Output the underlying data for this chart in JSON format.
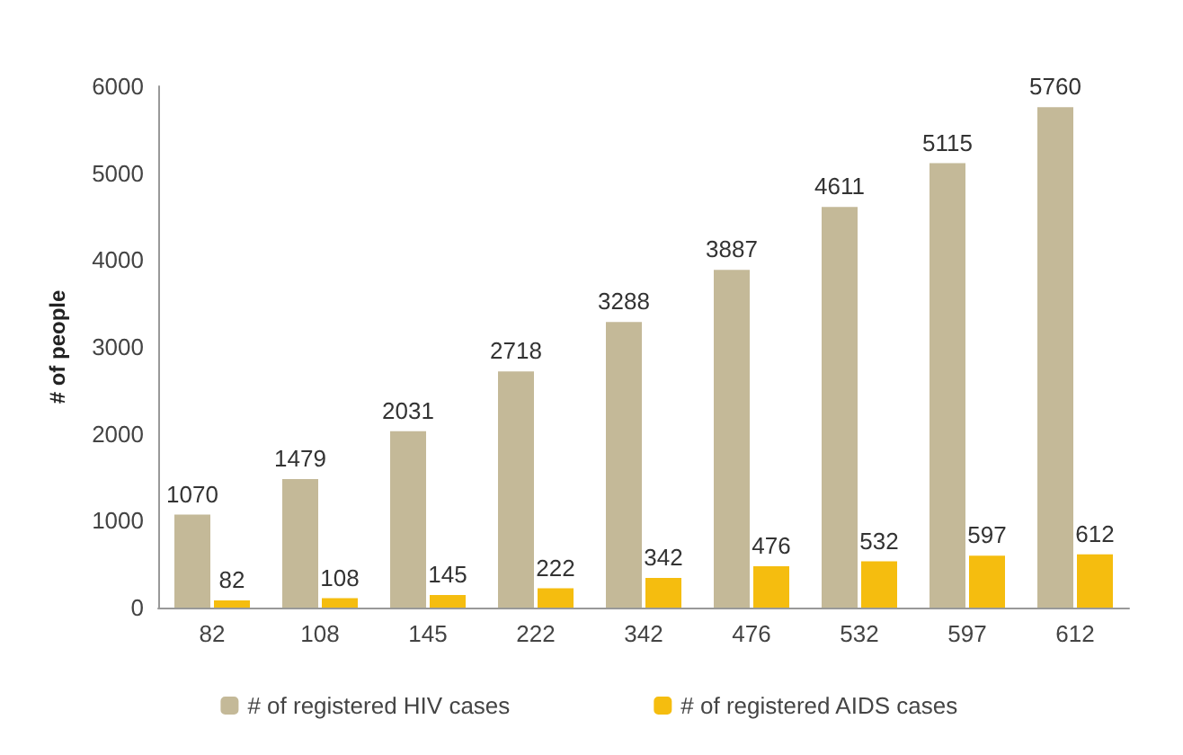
{
  "chart_data": {
    "type": "bar",
    "ylabel": "# of people",
    "categories": [
      "82",
      "108",
      "145",
      "222",
      "342",
      "476",
      "532",
      "597",
      "612"
    ],
    "series": [
      {
        "name": "# of registered HIV cases",
        "color": "#c4b998",
        "values": [
          1070,
          1479,
          2031,
          2718,
          3288,
          3887,
          4611,
          5115,
          5760
        ]
      },
      {
        "name": "# of registered AIDS cases",
        "color": "#f5bd0f",
        "values": [
          82,
          108,
          145,
          222,
          342,
          476,
          532,
          597,
          612
        ]
      }
    ],
    "ylim": [
      0,
      6000
    ],
    "yticks": [
      0,
      1000,
      2000,
      3000,
      4000,
      5000,
      6000
    ],
    "grid": false,
    "legend": "bottom",
    "data_labels": true
  }
}
